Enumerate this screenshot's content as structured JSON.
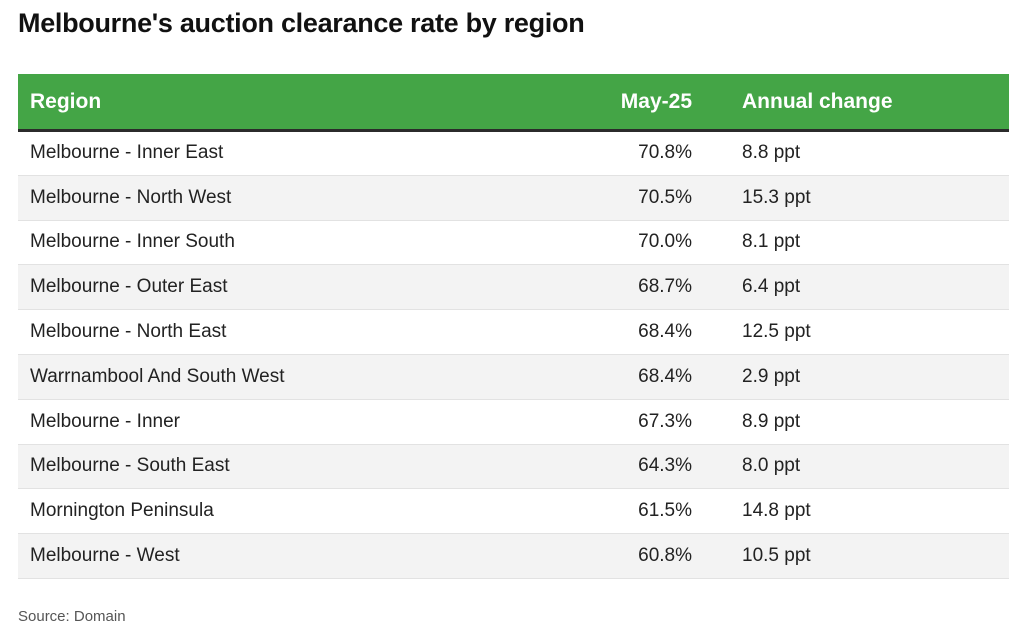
{
  "title": "Melbourne's auction clearance rate by region",
  "source": "Source: Domain",
  "header_color": "#44a546",
  "chart_data": {
    "type": "table",
    "title": "Melbourne's auction clearance rate by region",
    "columns": [
      "Region",
      "May-25",
      "Annual change"
    ],
    "rows": [
      [
        "Melbourne - Inner East",
        "70.8%",
        "8.8 ppt"
      ],
      [
        "Melbourne - North West",
        "70.5%",
        "15.3 ppt"
      ],
      [
        "Melbourne - Inner South",
        "70.0%",
        "8.1 ppt"
      ],
      [
        "Melbourne - Outer East",
        "68.7%",
        "6.4 ppt"
      ],
      [
        "Melbourne - North East",
        "68.4%",
        "12.5 ppt"
      ],
      [
        "Warrnambool And South West",
        "68.4%",
        "2.9 ppt"
      ],
      [
        "Melbourne - Inner",
        "67.3%",
        "8.9 ppt"
      ],
      [
        "Melbourne - South East",
        "64.3%",
        "8.0 ppt"
      ],
      [
        "Mornington Peninsula",
        "61.5%",
        "14.8 ppt"
      ],
      [
        "Melbourne - West",
        "60.8%",
        "10.5 ppt"
      ]
    ]
  }
}
